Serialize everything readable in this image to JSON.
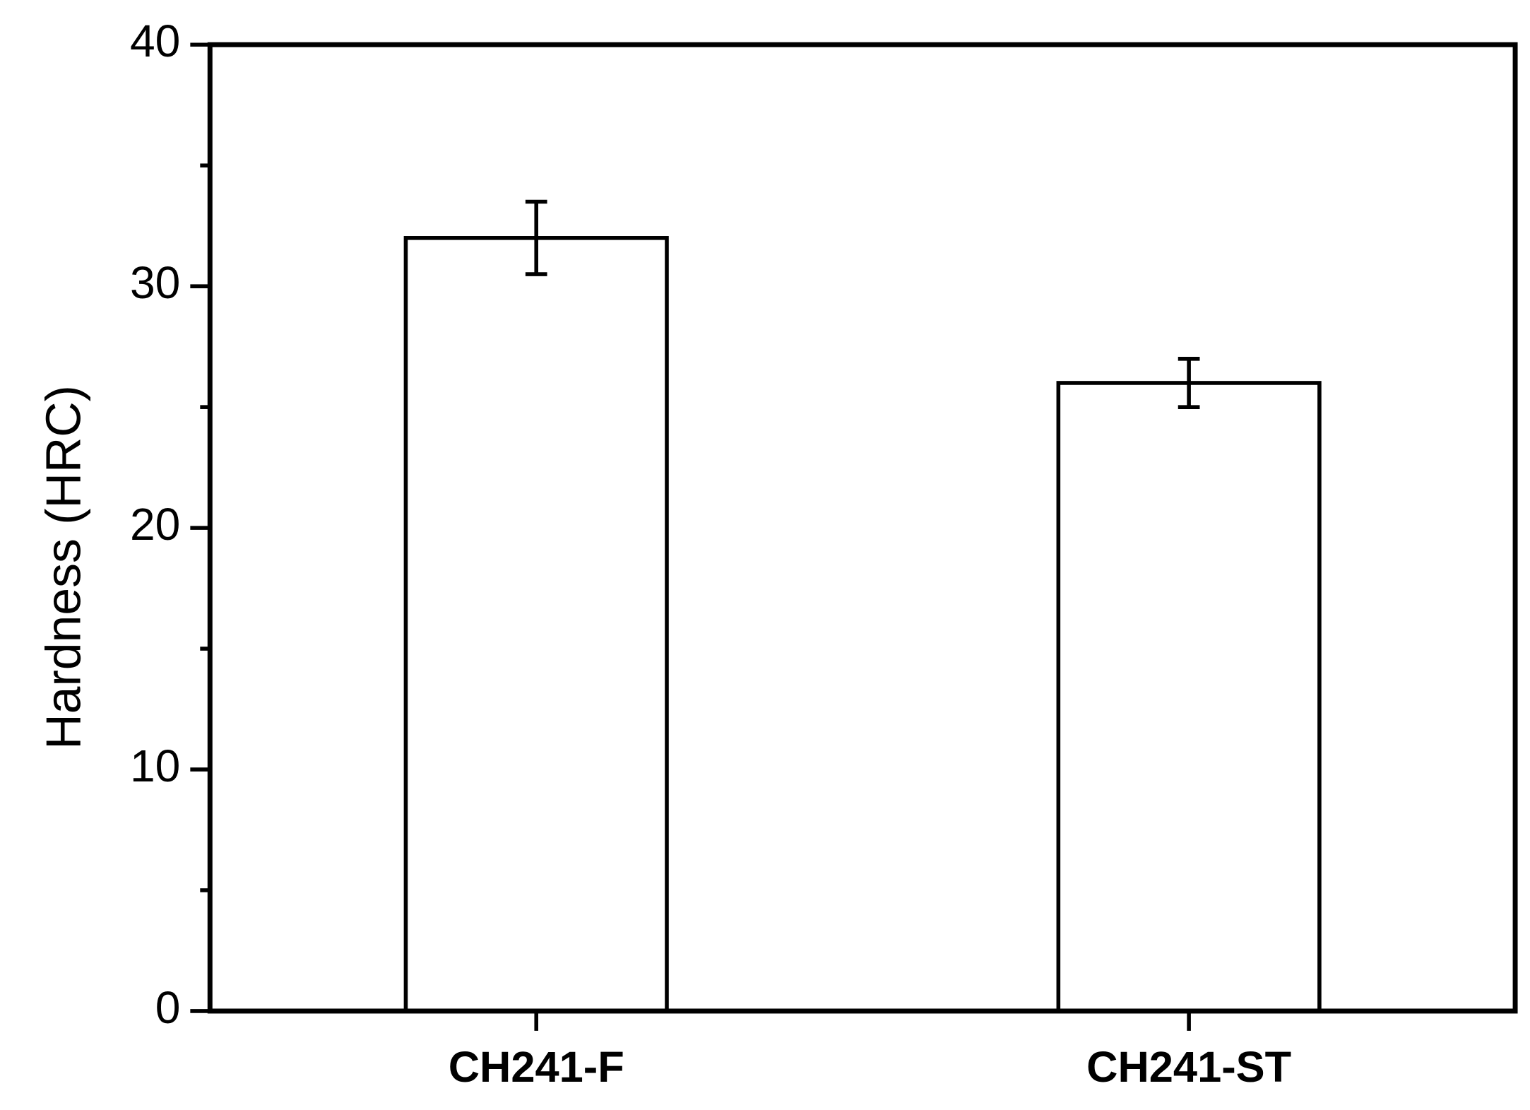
{
  "chart_data": {
    "type": "bar",
    "y_label": "Hardness (HRC)",
    "categories": [
      "CH241-F",
      "CH241-ST"
    ],
    "values": [
      32,
      26
    ],
    "errors": [
      1.5,
      1.0
    ],
    "color": "#ffffff",
    "edge_color": "#000000",
    "ylim": [
      0,
      40
    ],
    "yticks": [
      0,
      10,
      20,
      30,
      40
    ],
    "minor_yticks": [
      5,
      15,
      25,
      35
    ],
    "grid": false
  }
}
